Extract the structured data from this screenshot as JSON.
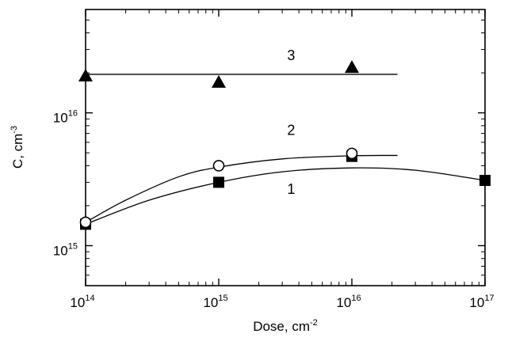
{
  "chart_data": {
    "type": "scatter",
    "title": "",
    "xlabel": {
      "base": "Dose, cm",
      "sup": "-2"
    },
    "ylabel": {
      "base": "C, cm",
      "sup": "-3"
    },
    "x_scale": "log",
    "y_scale": "log",
    "xlim": [
      100000000000000.0,
      1e+17
    ],
    "ylim": [
      500000000000000.0,
      6e+16
    ],
    "x_ticks": [
      {
        "value": 100000000000000.0,
        "base": "10",
        "exp": "14"
      },
      {
        "value": 1000000000000000.0,
        "base": "10",
        "exp": "15"
      },
      {
        "value": 1e+16,
        "base": "10",
        "exp": "16"
      },
      {
        "value": 1e+17,
        "base": "10",
        "exp": "17"
      }
    ],
    "y_ticks": [
      {
        "value": 1000000000000000.0,
        "base": "10",
        "exp": "15"
      },
      {
        "value": 1e+16,
        "base": "10",
        "exp": "16"
      }
    ],
    "grid": false,
    "legend": "none",
    "series": [
      {
        "label": "1",
        "marker": "filled-square",
        "points": [
          {
            "x": 100000000000000.0,
            "y": 1450000000000000.0
          },
          {
            "x": 1000000000000000.0,
            "y": 3000000000000000.0
          },
          {
            "x": 1e+16,
            "y": 4700000000000000.0
          },
          {
            "x": 1e+17,
            "y": 3100000000000000.0
          }
        ],
        "curve": [
          {
            "x": 100000000000000.0,
            "y": 1450000000000000.0
          },
          {
            "x": 300000000000000.0,
            "y": 2200000000000000.0
          },
          {
            "x": 1000000000000000.0,
            "y": 3000000000000000.0
          },
          {
            "x": 3000000000000000.0,
            "y": 3600000000000000.0
          },
          {
            "x": 1e+16,
            "y": 3850000000000000.0
          },
          {
            "x": 3e+16,
            "y": 3700000000000000.0
          },
          {
            "x": 1e+17,
            "y": 3100000000000000.0
          }
        ]
      },
      {
        "label": "2",
        "marker": "open-circle",
        "points": [
          {
            "x": 100000000000000.0,
            "y": 1500000000000000.0
          },
          {
            "x": 1000000000000000.0,
            "y": 4000000000000000.0
          },
          {
            "x": 1e+16,
            "y": 4950000000000000.0
          }
        ],
        "curve": [
          {
            "x": 100000000000000.0,
            "y": 1500000000000000.0
          },
          {
            "x": 200000000000000.0,
            "y": 2200000000000000.0
          },
          {
            "x": 500000000000000.0,
            "y": 3300000000000000.0
          },
          {
            "x": 1000000000000000.0,
            "y": 3900000000000000.0
          },
          {
            "x": 3000000000000000.0,
            "y": 4500000000000000.0
          },
          {
            "x": 1e+16,
            "y": 4750000000000000.0
          },
          {
            "x": 2.2e+16,
            "y": 4780000000000000.0
          }
        ]
      },
      {
        "label": "3",
        "marker": "filled-triangle",
        "points": [
          {
            "x": 100000000000000.0,
            "y": 1.9e+16
          },
          {
            "x": 1000000000000000.0,
            "y": 1.7e+16
          },
          {
            "x": 1e+16,
            "y": 2.2e+16
          }
        ],
        "curve": [
          {
            "x": 100000000000000.0,
            "y": 1.95e+16
          },
          {
            "x": 2.2e+16,
            "y": 1.95e+16
          }
        ]
      }
    ],
    "annotations": [
      {
        "text": "3",
        "x": 3500000000000000.0,
        "y": 2.5e+16
      },
      {
        "text": "2",
        "x": 3500000000000000.0,
        "y": 6800000000000000.0
      },
      {
        "text": "1",
        "x": 3500000000000000.0,
        "y": 2450000000000000.0
      }
    ]
  }
}
